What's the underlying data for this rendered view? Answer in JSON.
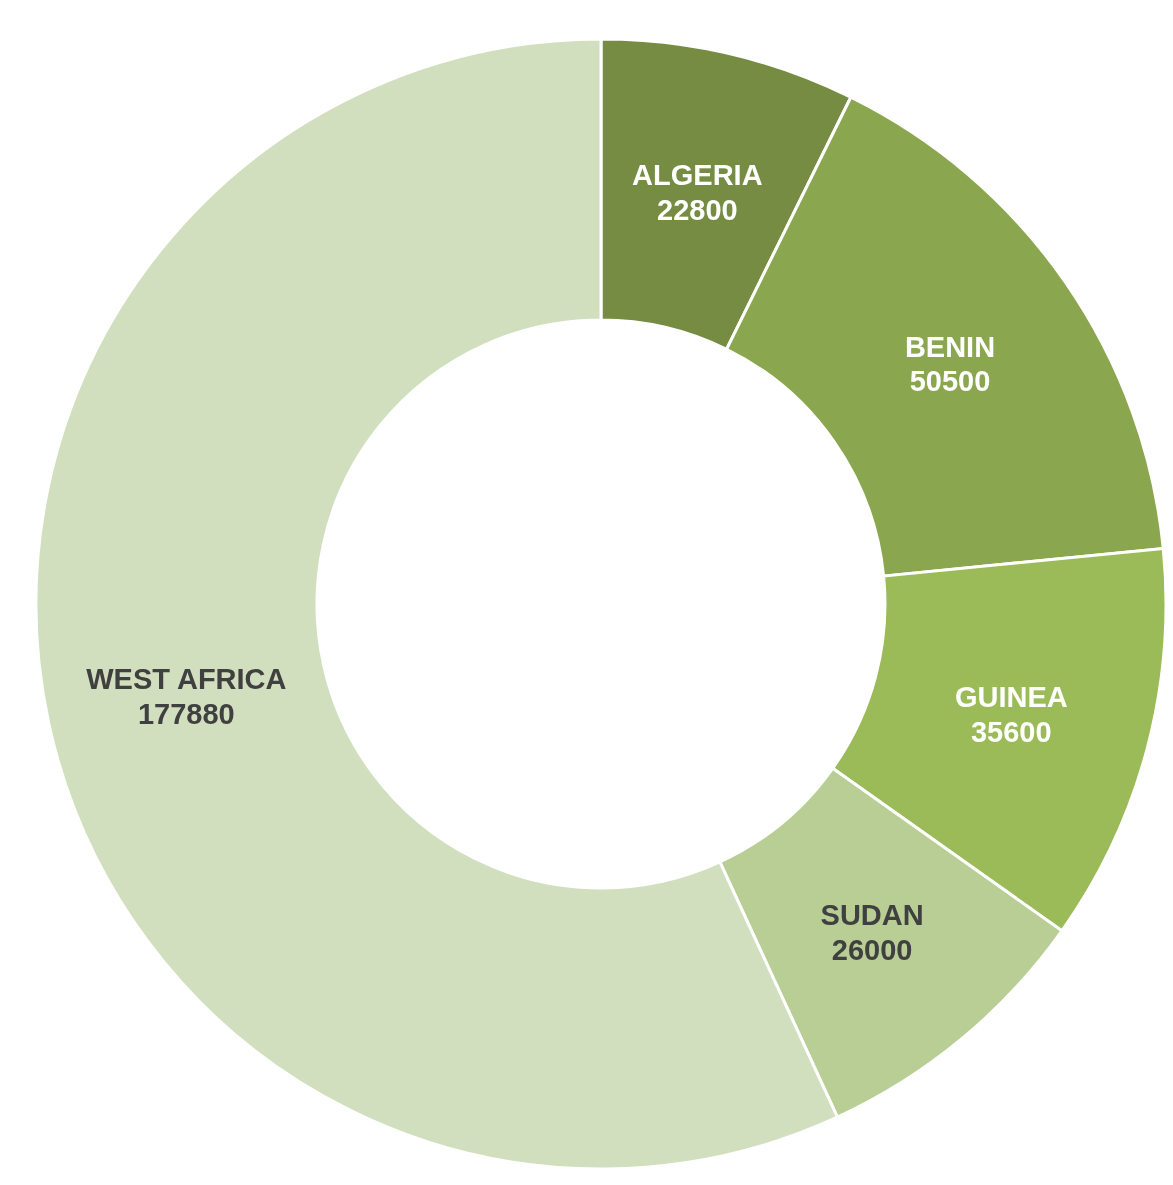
{
  "chart_data": {
    "type": "donut",
    "categories": [
      "ALGERIA",
      "BENIN",
      "GUINEA",
      "SUDAN",
      "WEST AFRICA"
    ],
    "values": [
      22800,
      50500,
      35600,
      26000,
      177880
    ],
    "colors": [
      "#758c42",
      "#8aa64e",
      "#9bbb59",
      "#b9ce95",
      "#d1dfbf"
    ],
    "data_labels": true,
    "legend": false
  }
}
